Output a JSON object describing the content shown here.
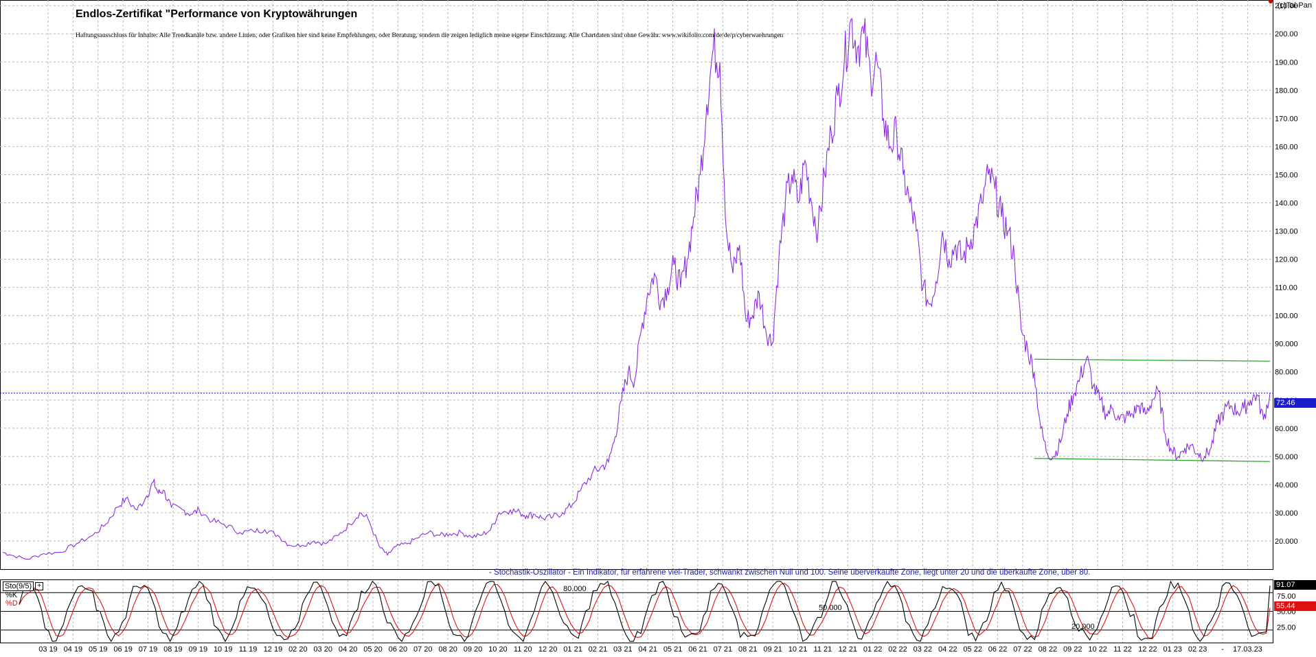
{
  "header": {
    "title": "Endlos-Zertifikat \"Performance von Kryptowährungen",
    "disclaimer": "Haftungsausschluss für Inhalte: Alle Trendkanäle bzw. andere Linien, oder Grafiken hier sind keine Empfehlungen, oder Beratung, sondern die zeigen lediglich meine eigene Einschätzung. Alle Chartdaten sind ohne Gewähr.  www.wikifolio.com/de/de/p/cyberwaehrungen",
    "credit": "(c)Tai-Pan"
  },
  "chart_data": [
    {
      "type": "line",
      "name": "price",
      "ylim": [
        10,
        212
      ],
      "y_ticks": [
        "20.000",
        "30.000",
        "40.000",
        "50.000",
        "60.000",
        "70.000",
        "80.000",
        "90.000",
        "100.00",
        "110.00",
        "120.00",
        "130.00",
        "140.00",
        "150.00",
        "160.00",
        "170.00",
        "180.00",
        "190.00",
        "200.00",
        "210.00"
      ],
      "y_tick_values": [
        20,
        30,
        40,
        50,
        60,
        70,
        80,
        90,
        100,
        110,
        120,
        130,
        140,
        150,
        160,
        170,
        180,
        190,
        200,
        210
      ],
      "grid": true,
      "line_color": "#8a2be2",
      "last_value_label": "72.46",
      "last_value": 72.46,
      "x_months": 51,
      "price_anchors": [
        [
          0,
          16
        ],
        [
          0.5,
          15
        ],
        [
          1.5,
          13.5
        ],
        [
          2.5,
          15.5
        ],
        [
          3.5,
          16
        ],
        [
          4.5,
          19
        ],
        [
          5.5,
          22
        ],
        [
          6.3,
          26
        ],
        [
          7,
          32
        ],
        [
          7.5,
          35
        ],
        [
          8.2,
          31
        ],
        [
          8.8,
          36
        ],
        [
          9.2,
          41
        ],
        [
          9.5,
          37
        ],
        [
          9.8,
          38
        ],
        [
          10.3,
          32
        ],
        [
          11,
          31
        ],
        [
          11.5,
          29.5
        ],
        [
          12,
          31
        ],
        [
          12.8,
          27
        ],
        [
          13.5,
          26
        ],
        [
          14.5,
          23
        ],
        [
          15.3,
          23.5
        ],
        [
          16,
          24
        ],
        [
          16.8,
          22
        ],
        [
          17.5,
          18.5
        ],
        [
          18.3,
          18.5
        ],
        [
          19,
          20
        ],
        [
          19.7,
          19
        ],
        [
          20.5,
          22
        ],
        [
          21.2,
          26
        ],
        [
          21.8,
          30
        ],
        [
          22.3,
          28
        ],
        [
          23,
          18
        ],
        [
          23.5,
          15
        ],
        [
          24,
          18
        ],
        [
          24.7,
          19
        ],
        [
          25.3,
          21
        ],
        [
          26,
          23
        ],
        [
          26.7,
          22
        ],
        [
          27.3,
          22.5
        ],
        [
          28,
          23
        ],
        [
          28.6,
          21.5
        ],
        [
          29.2,
          22
        ],
        [
          29.8,
          24
        ],
        [
          30.3,
          30
        ],
        [
          31,
          31
        ],
        [
          31.6,
          30
        ],
        [
          32,
          29
        ],
        [
          32.5,
          29.5
        ],
        [
          33,
          28
        ],
        [
          33.6,
          28.5
        ],
        [
          34.2,
          30
        ],
        [
          34.8,
          33
        ],
        [
          35.3,
          38
        ],
        [
          36,
          44
        ],
        [
          36.5,
          46
        ],
        [
          37,
          48
        ],
        [
          37.4,
          57
        ],
        [
          37.8,
          70
        ],
        [
          38.2,
          80
        ],
        [
          38.6,
          77
        ],
        [
          39,
          95
        ],
        [
          39.4,
          108
        ],
        [
          39.8,
          115
        ],
        [
          40.2,
          105
        ],
        [
          40.6,
          110
        ],
        [
          41,
          118
        ],
        [
          41.4,
          110
        ],
        [
          41.8,
          120
        ],
        [
          42.2,
          135
        ],
        [
          42.6,
          150
        ],
        [
          43,
          175
        ],
        [
          43.4,
          195
        ],
        [
          43.8,
          190
        ],
        [
          44.2,
          130
        ],
        [
          44.6,
          115
        ],
        [
          45,
          125
        ],
        [
          45.4,
          98
        ],
        [
          45.8,
          100
        ],
        [
          46.2,
          108
        ],
        [
          46.6,
          95
        ],
        [
          47,
          90
        ],
        [
          47.4,
          120
        ],
        [
          47.8,
          140
        ],
        [
          48.2,
          150
        ],
        [
          48.6,
          140
        ],
        [
          49,
          155
        ],
        [
          49.4,
          140
        ],
        [
          49.8,
          130
        ],
        [
          50.2,
          150
        ],
        [
          50.6,
          165
        ],
        [
          51,
          178
        ],
        [
          51.4,
          190
        ],
        [
          51.8,
          205
        ],
        [
          52.2,
          195
        ],
        [
          52.6,
          200
        ],
        [
          53,
          185
        ],
        [
          53.4,
          190
        ],
        [
          53.8,
          170
        ],
        [
          54.2,
          160
        ],
        [
          54.6,
          165
        ],
        [
          55,
          150
        ],
        [
          55.4,
          140
        ],
        [
          55.8,
          130
        ],
        [
          56.2,
          110
        ],
        [
          56.6,
          104
        ],
        [
          57,
          112
        ],
        [
          57.4,
          130
        ],
        [
          57.8,
          120
        ],
        [
          58.2,
          125
        ],
        [
          58.6,
          120
        ],
        [
          59,
          125
        ],
        [
          59.4,
          132
        ],
        [
          59.8,
          140
        ],
        [
          60.2,
          150
        ],
        [
          60.6,
          145
        ],
        [
          61,
          135
        ],
        [
          61.4,
          130
        ],
        [
          61.8,
          120
        ],
        [
          62.2,
          95
        ],
        [
          62.6,
          88
        ],
        [
          63,
          80
        ],
        [
          63.4,
          60
        ],
        [
          63.8,
          51
        ],
        [
          64.2,
          50
        ],
        [
          64.6,
          55
        ],
        [
          65,
          65
        ],
        [
          65.4,
          72
        ],
        [
          65.8,
          78
        ],
        [
          66.2,
          85
        ],
        [
          66.6,
          75
        ],
        [
          67,
          70
        ],
        [
          67.4,
          65
        ],
        [
          67.8,
          67
        ],
        [
          68.2,
          63
        ],
        [
          68.6,
          64
        ],
        [
          69,
          65
        ],
        [
          69.4,
          68
        ],
        [
          69.8,
          65
        ],
        [
          70.2,
          70
        ],
        [
          70.6,
          73
        ],
        [
          71,
          58
        ],
        [
          71.4,
          52
        ],
        [
          71.8,
          50
        ],
        [
          72.2,
          53
        ],
        [
          72.6,
          54
        ],
        [
          73,
          51
        ],
        [
          73.4,
          50
        ],
        [
          73.8,
          53
        ],
        [
          74.2,
          62
        ],
        [
          74.6,
          66
        ],
        [
          75,
          68
        ],
        [
          75.4,
          66
        ],
        [
          75.8,
          67
        ],
        [
          76.2,
          70
        ],
        [
          76.6,
          72
        ],
        [
          77,
          63
        ],
        [
          77.4,
          72.46
        ]
      ],
      "channel_upper": {
        "label": "",
        "from": [
          63,
          84.5
        ],
        "to": [
          77.4,
          83.8
        ],
        "color": "#2aa52a"
      },
      "channel_lower": {
        "label": "",
        "from": [
          63,
          49.3
        ],
        "to": [
          77.4,
          48.2
        ],
        "color": "#2aa52a"
      },
      "hline": {
        "value": 72.46,
        "color": "#1414d2",
        "style": "dotted"
      }
    },
    {
      "type": "line",
      "name": "Sto(9/5)",
      "title": "- Stochastik-Oszillator - Ein Indikator, für erfahrene viel-Trader, schwankt zwischen Null und 100. Seine überverkaufte Zone, liegt unter 20 und die überkaufte Zone, über 80.",
      "ylim": [
        0,
        100
      ],
      "y_ticks": [
        "25.00",
        "50.00",
        "75.00"
      ],
      "y_tick_values": [
        25,
        50,
        75
      ],
      "levels": [
        {
          "value": 80,
          "label": "80.000"
        },
        {
          "value": 50,
          "label": "50.000"
        },
        {
          "value": 20,
          "label": "20.000"
        }
      ],
      "series": [
        {
          "name": "%K",
          "color": "#000000"
        },
        {
          "name": "%D",
          "color": "#e01010"
        }
      ],
      "k_last_label": "91.07",
      "k_last": 91.07,
      "d_last_label": "55.44",
      "d_last": 55.44
    }
  ],
  "x_axis": {
    "labels": [
      "03 19",
      "04 19",
      "05 19",
      "06 19",
      "07 19",
      "08 19",
      "09 19",
      "10 19",
      "11 19",
      "12 19",
      "02 20",
      "03 20",
      "04 20",
      "05 20",
      "06 20",
      "07 20",
      "08 20",
      "09 20",
      "10 20",
      "11 20",
      "12 20",
      "01 21",
      "02 21",
      "03 21",
      "04 21",
      "05 21",
      "06 21",
      "07 21",
      "08 21",
      "09 21",
      "10 21",
      "11 21",
      "12 21",
      "01 22",
      "02 22",
      "03 22",
      "04 22",
      "05 22",
      "06 22",
      "07 22",
      "08 22",
      "09 22",
      "10 22",
      "11 22",
      "12 22",
      "01 23",
      "02 23",
      "-",
      "17.03.23"
    ]
  },
  "oscillator_legend": {
    "tag": "Sto(9/5)",
    "k": "%K",
    "d": "%D"
  }
}
